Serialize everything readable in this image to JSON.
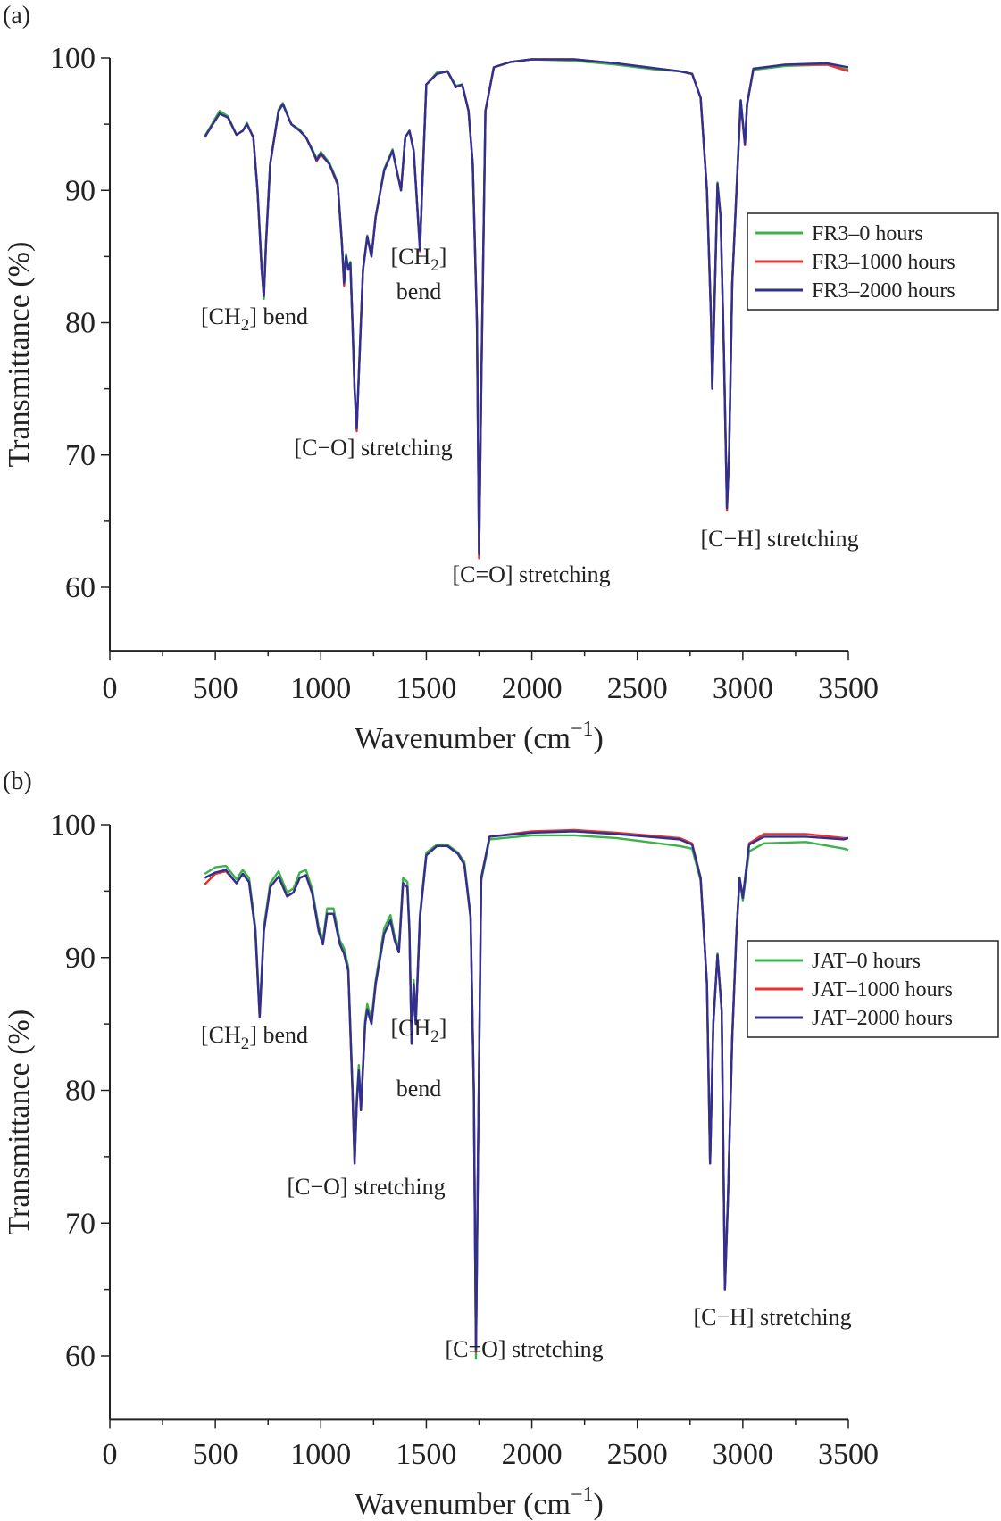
{
  "chart_data": [
    {
      "type": "line",
      "panel_label": "(a)",
      "xlabel": "Wavenumber (cm",
      "xlabel_sup": "−1",
      "xlabel_end": ")",
      "ylabel": "Transmittance (%)",
      "xlim": [
        0,
        3500
      ],
      "ylim": [
        55.2,
        100
      ],
      "xticks": [
        "0",
        "500",
        "1000",
        "1500",
        "2000",
        "2500",
        "3000",
        "3500"
      ],
      "yticks": [
        "60",
        "70",
        "80",
        "90",
        "100"
      ],
      "grid": false,
      "legend_position": "right",
      "annotations": [
        {
          "pre": "[CH",
          "sub": "2",
          "post": "] bend"
        },
        {
          "pre": "[CH",
          "sub": "2",
          "post": "]",
          "line2": "bend"
        },
        {
          "pre": "[C−O] stretching"
        },
        {
          "pre": "[C=O] stretching"
        },
        {
          "pre": "[C−H] stretching"
        }
      ],
      "x": [
        450,
        480,
        520,
        560,
        600,
        630,
        650,
        680,
        700,
        720,
        730,
        740,
        760,
        800,
        820,
        860,
        900,
        930,
        960,
        980,
        1000,
        1040,
        1080,
        1100,
        1110,
        1120,
        1130,
        1140,
        1150,
        1160,
        1170,
        1180,
        1200,
        1220,
        1240,
        1260,
        1300,
        1340,
        1360,
        1380,
        1400,
        1420,
        1440,
        1460,
        1470,
        1480,
        1500,
        1550,
        1600,
        1640,
        1670,
        1700,
        1720,
        1740,
        1750,
        1760,
        1780,
        1820,
        1900,
        2000,
        2200,
        2400,
        2600,
        2700,
        2760,
        2800,
        2830,
        2850,
        2855,
        2870,
        2880,
        2895,
        2910,
        2925,
        2935,
        2950,
        2970,
        2990,
        3010,
        3020,
        3050,
        3200,
        3400,
        3500
      ],
      "series": [
        {
          "name": "FR3–0 hours",
          "color": "#3cb34a",
          "y": [
            94.1,
            94.9,
            96,
            95.6,
            94.2,
            94.5,
            95.1,
            94,
            90,
            84,
            81.8,
            86,
            92,
            96.1,
            96.6,
            95,
            94.6,
            94,
            93.1,
            92.4,
            92.9,
            92.1,
            90.6,
            86,
            83.2,
            85.2,
            84,
            84.6,
            80,
            75,
            72.2,
            76,
            84,
            86.6,
            85,
            88,
            91.6,
            93.1,
            91.5,
            90,
            94,
            94.5,
            93,
            88,
            85.6,
            90,
            98,
            98.9,
            99,
            97.9,
            98,
            96,
            92,
            80,
            62.6,
            75,
            96,
            99.3,
            99.7,
            99.9,
            99.8,
            99.5,
            99.1,
            99,
            98.8,
            97,
            90,
            80,
            75.2,
            84,
            90.6,
            88,
            78,
            66,
            70,
            83,
            90,
            96.8,
            93.6,
            96.5,
            99.1,
            99.4,
            99.5,
            99.1
          ]
        },
        {
          "name": "FR3–1000 hours",
          "color": "#e8312f",
          "y": [
            94,
            94.8,
            95.8,
            95.5,
            94.2,
            94.5,
            95,
            94,
            90,
            84,
            82,
            86,
            92,
            96,
            96.5,
            95,
            94.5,
            94,
            93,
            92.2,
            92.7,
            92,
            90.4,
            86,
            82.8,
            85,
            84,
            84.4,
            80,
            74.8,
            71.8,
            76,
            84,
            86.5,
            85,
            88,
            91.5,
            93,
            91.5,
            90,
            94,
            94.5,
            93,
            88,
            85.4,
            90,
            98,
            98.8,
            99,
            97.8,
            98,
            96,
            92,
            80,
            62.2,
            75,
            96,
            99.3,
            99.7,
            99.9,
            99.9,
            99.6,
            99.2,
            99,
            98.8,
            97,
            90,
            80,
            75,
            84,
            90.4,
            88,
            78,
            65.8,
            70,
            83,
            90,
            96.7,
            93.4,
            96.5,
            99.2,
            99.5,
            99.5,
            99
          ]
        },
        {
          "name": "FR3–2000 hours",
          "color": "#2e3192",
          "y": [
            94,
            94.8,
            95.8,
            95.5,
            94.2,
            94.5,
            95,
            94,
            90,
            84,
            82,
            86,
            92,
            96,
            96.5,
            95,
            94.5,
            94,
            93,
            92.3,
            92.8,
            92,
            90.5,
            86,
            83,
            85,
            84,
            84.5,
            80,
            75,
            72,
            76,
            84,
            86.5,
            85,
            88,
            91.5,
            93,
            91.5,
            90,
            94,
            94.5,
            93,
            88,
            85.5,
            90,
            98,
            98.8,
            99,
            97.8,
            98,
            96,
            92,
            80,
            62.5,
            75,
            96,
            99.3,
            99.7,
            99.9,
            99.9,
            99.6,
            99.2,
            99,
            98.8,
            97,
            90,
            80,
            75,
            84,
            90.5,
            88,
            78,
            66,
            70,
            83,
            90,
            96.8,
            93.5,
            96.5,
            99.2,
            99.5,
            99.6,
            99.3
          ]
        }
      ]
    },
    {
      "type": "line",
      "panel_label": "(b)",
      "xlabel": "Wavenumber (cm",
      "xlabel_sup": "−1",
      "xlabel_end": ")",
      "ylabel": "Transmittance (%)",
      "xlim": [
        0,
        3500
      ],
      "ylim": [
        55.2,
        100
      ],
      "xticks": [
        "0",
        "500",
        "1000",
        "1500",
        "2000",
        "2500",
        "3000",
        "3500"
      ],
      "yticks": [
        "60",
        "70",
        "80",
        "90",
        "100"
      ],
      "grid": false,
      "legend_position": "right",
      "annotations": [
        {
          "pre": "[CH",
          "sub": "2",
          "post": "] bend"
        },
        {
          "pre": "[CH",
          "sub": "2",
          "post": "]",
          "line2": "bend"
        },
        {
          "pre": "[C−O] stretching"
        },
        {
          "pre": "[C=O] stretching"
        },
        {
          "pre": "[C−H] stretching"
        }
      ],
      "x": [
        450,
        500,
        550,
        600,
        630,
        660,
        690,
        710,
        730,
        760,
        800,
        840,
        870,
        900,
        930,
        960,
        990,
        1010,
        1030,
        1060,
        1090,
        1110,
        1130,
        1150,
        1160,
        1170,
        1180,
        1190,
        1210,
        1220,
        1240,
        1260,
        1300,
        1330,
        1350,
        1370,
        1390,
        1410,
        1420,
        1430,
        1440,
        1450,
        1470,
        1500,
        1550,
        1600,
        1650,
        1680,
        1710,
        1725,
        1735,
        1745,
        1760,
        1800,
        2000,
        2200,
        2400,
        2700,
        2760,
        2800,
        2830,
        2845,
        2860,
        2880,
        2900,
        2915,
        2930,
        2950,
        2970,
        2985,
        3000,
        3030,
        3100,
        3300,
        3480,
        3500
      ],
      "series": [
        {
          "name": "JAT–0 hours",
          "color": "#3cb34a",
          "y": [
            96.3,
            96.8,
            96.9,
            95.9,
            96.6,
            96,
            92.3,
            85.8,
            92.3,
            95.6,
            96.5,
            94.9,
            95.2,
            96.4,
            96.6,
            95.1,
            92.3,
            91.3,
            93.7,
            93.7,
            91.3,
            90.7,
            89.3,
            80.3,
            74.8,
            79.3,
            81.9,
            78.8,
            85.3,
            86.5,
            85.3,
            88.3,
            92.2,
            93.2,
            91.6,
            90.7,
            96,
            95.7,
            92.3,
            83.7,
            88.3,
            85.3,
            93.3,
            97.9,
            98.5,
            98.5,
            97.9,
            97.2,
            93.2,
            80,
            59.8,
            75,
            95.8,
            98.9,
            99.2,
            99.2,
            99,
            98.4,
            98.2,
            95.8,
            88,
            74.6,
            85,
            90.3,
            86,
            65.2,
            72,
            84,
            92,
            95.8,
            94.3,
            98,
            98.6,
            98.7,
            98.2,
            98.1
          ]
        },
        {
          "name": "JAT–1000 hours",
          "color": "#e8312f",
          "y": [
            95.5,
            96.3,
            96.5,
            95.6,
            96.3,
            95.7,
            92,
            85.5,
            92,
            95.3,
            96.1,
            94.6,
            94.9,
            96,
            96.2,
            94.8,
            92,
            91,
            93.3,
            93.3,
            91,
            90.3,
            89,
            80,
            74.5,
            79,
            81.5,
            78.5,
            85,
            86.1,
            85,
            88,
            91.8,
            92.8,
            91.3,
            90.4,
            95.6,
            95.3,
            92,
            83.5,
            88,
            85,
            93,
            97.7,
            98.4,
            98.4,
            97.8,
            97,
            93,
            80,
            60.3,
            75,
            96,
            99.1,
            99.5,
            99.6,
            99.4,
            99,
            98.6,
            96,
            88,
            74.5,
            85,
            90.2,
            86,
            65,
            72,
            84,
            92,
            96,
            94.5,
            98.6,
            99.3,
            99.3,
            99,
            99
          ]
        },
        {
          "name": "JAT–2000 hours",
          "color": "#2e3192",
          "y": [
            96,
            96.4,
            96.6,
            95.6,
            96.3,
            95.7,
            92,
            85.5,
            92,
            95.3,
            96.1,
            94.6,
            94.9,
            96,
            96.2,
            94.8,
            92,
            91,
            93.3,
            93.3,
            91,
            90.3,
            89,
            80,
            74.5,
            79,
            81.5,
            78.5,
            85,
            86.1,
            85,
            88,
            91.8,
            92.8,
            91.3,
            90.4,
            95.6,
            95.3,
            92,
            83.5,
            88,
            85,
            93,
            97.7,
            98.4,
            98.4,
            97.8,
            97,
            93,
            80,
            60.5,
            75,
            96,
            99.1,
            99.4,
            99.5,
            99.3,
            98.9,
            98.5,
            96,
            88,
            74.5,
            85,
            90.2,
            86,
            65,
            72,
            84,
            92,
            96,
            94.5,
            98.5,
            99.1,
            99.1,
            98.9,
            99
          ]
        }
      ]
    }
  ]
}
